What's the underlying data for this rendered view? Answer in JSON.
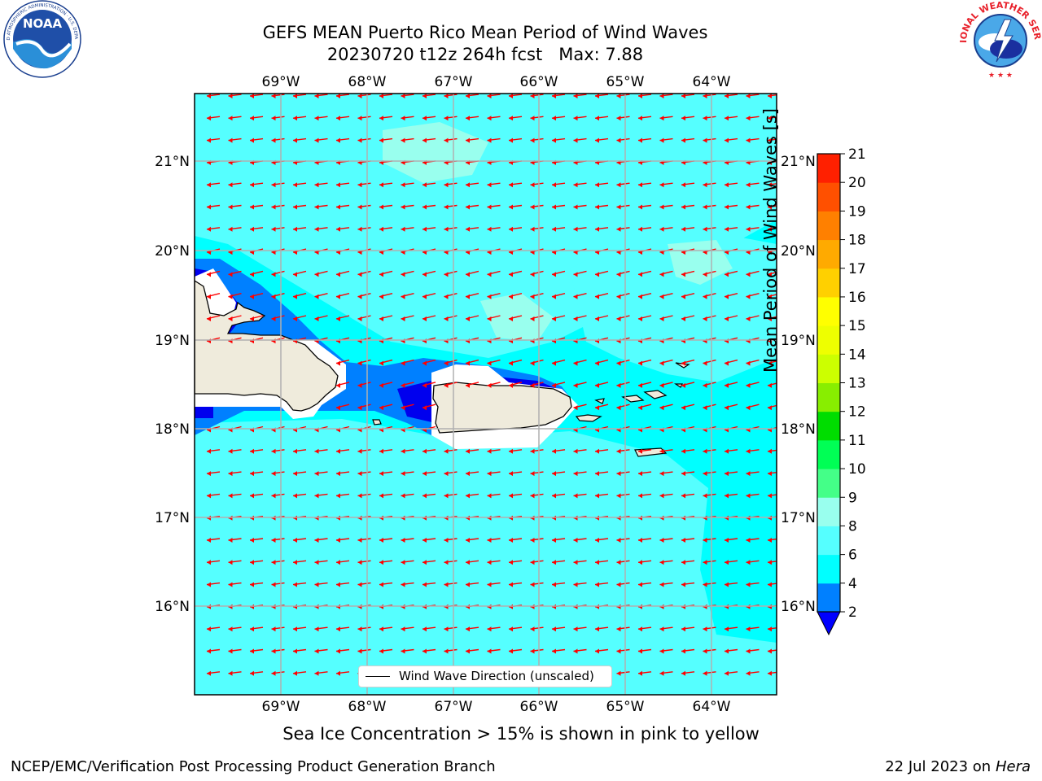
{
  "header": {
    "title_line1": "GEFS MEAN Puerto Rico Mean Period of Wind Waves",
    "title_line2": "20230720 t12z 264h fcst   Max: 7.88"
  },
  "logos": {
    "noaa": {
      "text": "NOAA",
      "ring_text": "NATIONAL OCEANIC AND ATMOSPHERIC ADMINISTRATION · U.S. DEPARTMENT OF COMMERCE"
    },
    "nws": {
      "ring_text": "NATIONAL WEATHER SERVICE"
    }
  },
  "map": {
    "lon_labels": [
      "69°W",
      "68°W",
      "67°W",
      "66°W",
      "65°W",
      "64°W"
    ],
    "lat_labels": [
      "21°N",
      "20°N",
      "19°N",
      "18°N",
      "17°N",
      "16°N"
    ],
    "legend_label": "Wind Wave Direction (unscaled)",
    "colors": {
      "ocean": "#00ffff",
      "land": "#efebdc",
      "arrow": "#ff0000",
      "grid": "#b0b0b0"
    }
  },
  "colorbar": {
    "title": "Mean Period of Wind Waves [s]",
    "ticks": [
      "2",
      "4",
      "6",
      "8",
      "9",
      "10",
      "11",
      "12",
      "13",
      "14",
      "15",
      "16",
      "17",
      "18",
      "19",
      "20",
      "21"
    ],
    "colors": [
      "#0000ff",
      "#0080ff",
      "#00ffff",
      "#55ffff",
      "#99ffee",
      "#44ff88",
      "#00ff55",
      "#00dd00",
      "#88ee00",
      "#ccff00",
      "#eeff00",
      "#ffff00",
      "#ffd000",
      "#ffaa00",
      "#ff8000",
      "#ff5000",
      "#ff2000",
      "#ff0000"
    ]
  },
  "footer": {
    "ice_note": "Sea Ice Concentration > 15% is shown in pink to yellow",
    "left": "NCEP/EMC/Verification Post Processing Product Generation Branch",
    "right_prefix": "22 Jul 2023 on ",
    "right_host": "Hera"
  }
}
